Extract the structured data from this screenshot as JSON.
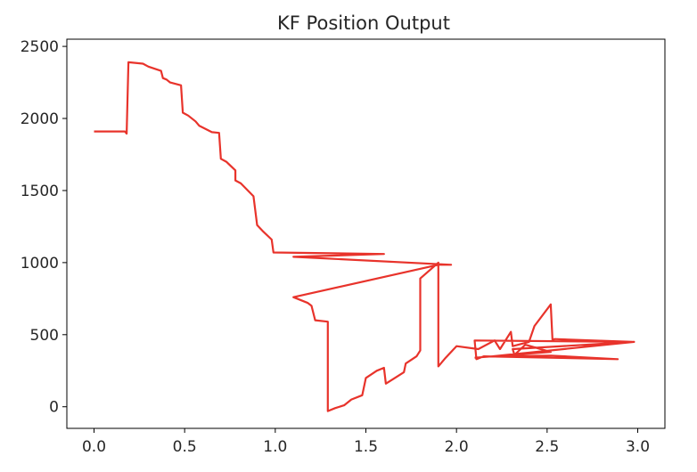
{
  "chart_data": {
    "type": "line",
    "title": "KF Position Output",
    "xlabel": "",
    "ylabel": "",
    "xlim": [
      -0.15,
      3.15
    ],
    "ylim": [
      -150,
      2550
    ],
    "x_ticks": [
      "0.0",
      "0.5",
      "1.0",
      "1.5",
      "2.0",
      "2.5",
      "3.0"
    ],
    "y_ticks": [
      "0",
      "500",
      "1000",
      "1500",
      "2000",
      "2500"
    ],
    "grid": false,
    "series": [
      {
        "color": "#e8332b",
        "points": [
          [
            0.0,
            1910
          ],
          [
            0.17,
            1910
          ],
          [
            0.18,
            1895
          ],
          [
            0.19,
            2390
          ],
          [
            0.27,
            2380
          ],
          [
            0.3,
            2360
          ],
          [
            0.37,
            2330
          ],
          [
            0.38,
            2280
          ],
          [
            0.4,
            2270
          ],
          [
            0.42,
            2250
          ],
          [
            0.48,
            2230
          ],
          [
            0.49,
            2040
          ],
          [
            0.52,
            2020
          ],
          [
            0.56,
            1980
          ],
          [
            0.58,
            1950
          ],
          [
            0.65,
            1905
          ],
          [
            0.69,
            1900
          ],
          [
            0.7,
            1720
          ],
          [
            0.73,
            1700
          ],
          [
            0.78,
            1640
          ],
          [
            0.78,
            1570
          ],
          [
            0.81,
            1550
          ],
          [
            0.88,
            1460
          ],
          [
            0.9,
            1260
          ],
          [
            0.93,
            1220
          ],
          [
            0.98,
            1160
          ],
          [
            0.99,
            1070
          ],
          [
            1.6,
            1060
          ],
          [
            1.1,
            1040
          ],
          [
            1.97,
            985
          ],
          [
            1.9,
            985
          ],
          [
            1.1,
            760
          ],
          [
            1.18,
            720
          ],
          [
            1.2,
            700
          ],
          [
            1.22,
            600
          ],
          [
            1.29,
            590
          ],
          [
            1.29,
            -30
          ],
          [
            1.33,
            -10
          ],
          [
            1.38,
            10
          ],
          [
            1.42,
            50
          ],
          [
            1.48,
            80
          ],
          [
            1.5,
            200
          ],
          [
            1.56,
            250
          ],
          [
            1.6,
            270
          ],
          [
            1.61,
            160
          ],
          [
            1.66,
            200
          ],
          [
            1.71,
            240
          ],
          [
            1.72,
            300
          ],
          [
            1.78,
            350
          ],
          [
            1.8,
            390
          ],
          [
            1.8,
            890
          ],
          [
            1.9,
            1000
          ],
          [
            1.9,
            280
          ],
          [
            1.94,
            340
          ],
          [
            2.0,
            420
          ],
          [
            2.12,
            400
          ],
          [
            2.21,
            460
          ],
          [
            2.24,
            400
          ],
          [
            2.3,
            520
          ],
          [
            2.31,
            420
          ],
          [
            2.4,
            450
          ],
          [
            2.43,
            560
          ],
          [
            2.52,
            710
          ],
          [
            2.53,
            460
          ],
          [
            2.54,
            470
          ],
          [
            2.97,
            450
          ],
          [
            2.1,
            460
          ],
          [
            2.11,
            330
          ],
          [
            2.15,
            350
          ],
          [
            2.89,
            330
          ],
          [
            2.52,
            355
          ],
          [
            2.2,
            350
          ],
          [
            2.98,
            450
          ],
          [
            2.31,
            400
          ],
          [
            2.32,
            360
          ],
          [
            2.38,
            430
          ],
          [
            2.52,
            380
          ],
          [
            2.1,
            340
          ]
        ]
      }
    ]
  }
}
